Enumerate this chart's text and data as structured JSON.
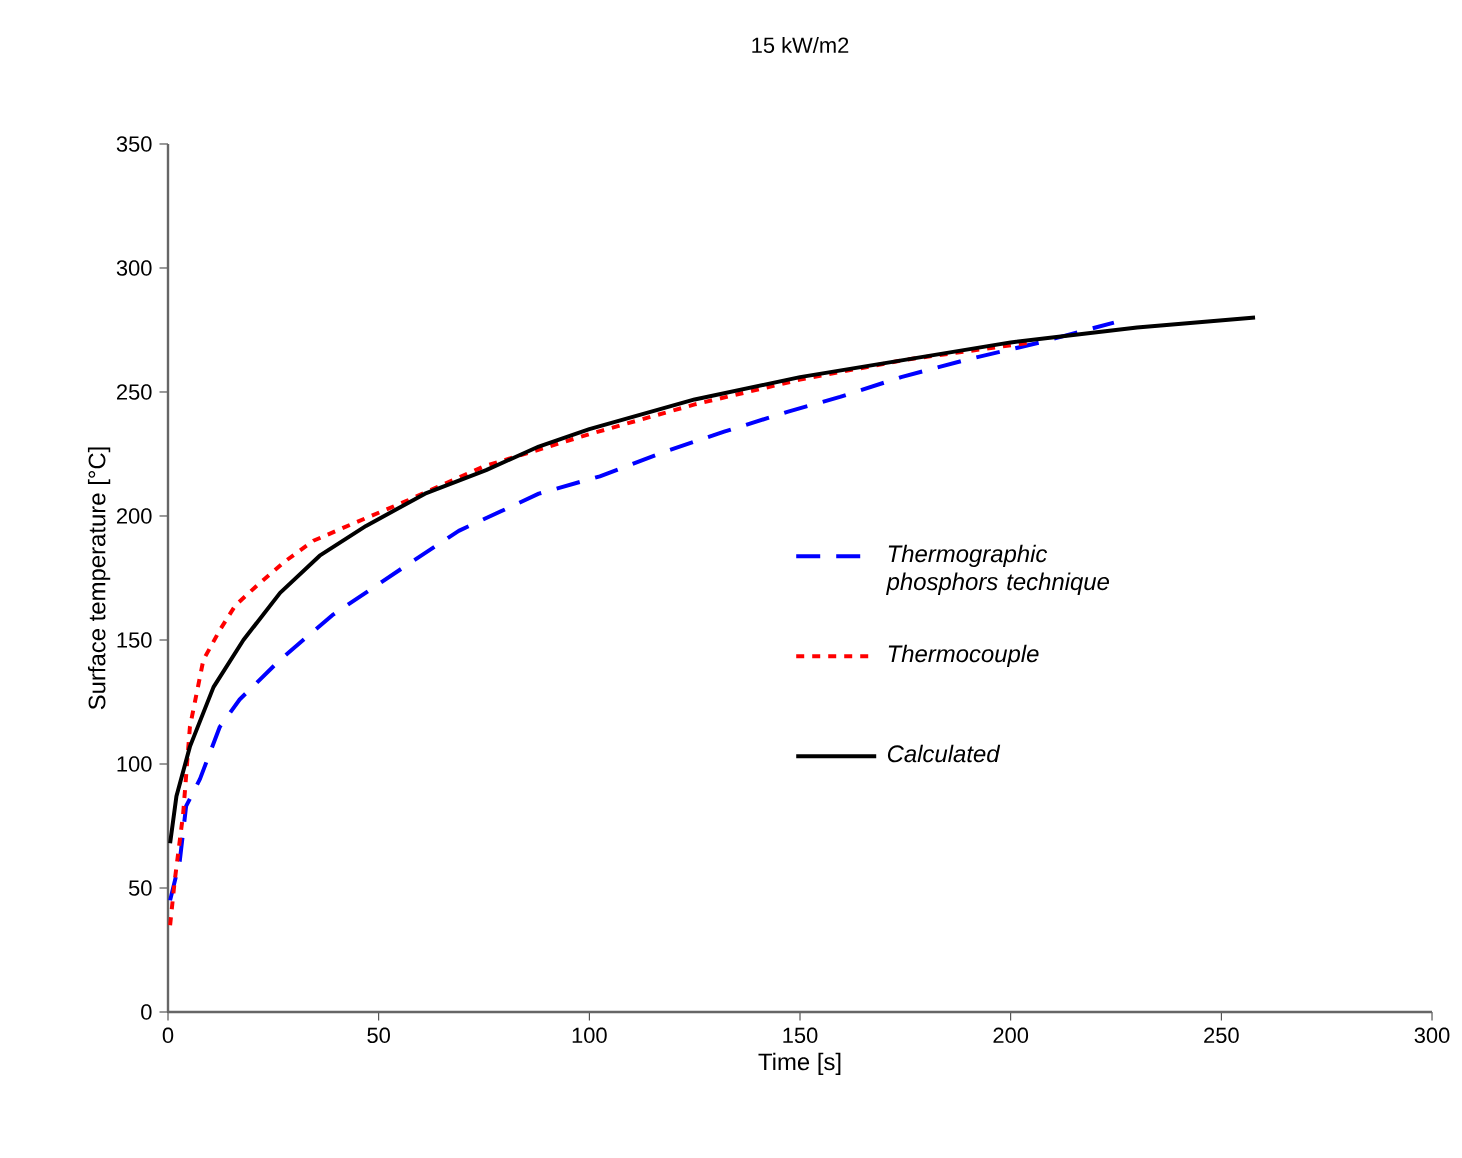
{
  "chart_data": {
    "type": "line",
    "title": "15 kW/m2",
    "xlabel": "Time [s]",
    "ylabel": "Surface temperature [°C]",
    "xlim": [
      0,
      300
    ],
    "ylim": [
      0,
      350
    ],
    "xticks": [
      0,
      50,
      100,
      150,
      200,
      250,
      300
    ],
    "yticks": [
      0,
      50,
      100,
      150,
      200,
      250,
      300,
      350
    ],
    "grid": false,
    "legend": "right",
    "marker": "none",
    "series": [
      {
        "name": "Thermographic phosphors technique",
        "color": "#0000ff",
        "line_style": "dashed",
        "x": [
          0.5,
          2.8,
          4.3,
          7.6,
          12.3,
          17,
          26.6,
          39,
          56.5,
          69,
          88,
          102.5,
          118,
          132,
          147,
          159.5,
          174,
          189.5,
          207,
          224.5
        ],
        "values": [
          45,
          61,
          83,
          94,
          115,
          126,
          142,
          160,
          180,
          194,
          209,
          216,
          226,
          234,
          242,
          248,
          256,
          263,
          270,
          278
        ]
      },
      {
        "name": "Thermocouple",
        "color": "#ff0000",
        "line_style": "dotted",
        "x": [
          0.5,
          1.6,
          3.6,
          5.2,
          8.4,
          12.3,
          16,
          21.8,
          28,
          34.5,
          44,
          56.5,
          75,
          100,
          125,
          150,
          175,
          205
        ],
        "values": [
          35,
          53,
          80,
          115,
          142,
          154,
          164,
          173,
          182,
          190,
          197,
          206,
          220,
          233,
          245,
          255,
          263,
          270
        ]
      },
      {
        "name": "Calculated",
        "color": "#000000",
        "line_style": "solid",
        "x": [
          0.5,
          2,
          5.2,
          10.8,
          17.9,
          26.6,
          36,
          47,
          61,
          75.5,
          88,
          100,
          125,
          150,
          175,
          200,
          230,
          258
        ],
        "values": [
          68,
          87,
          107,
          131,
          150,
          169,
          184,
          196,
          209,
          218.5,
          228,
          235,
          247,
          256,
          263,
          270,
          276,
          280
        ]
      }
    ]
  }
}
